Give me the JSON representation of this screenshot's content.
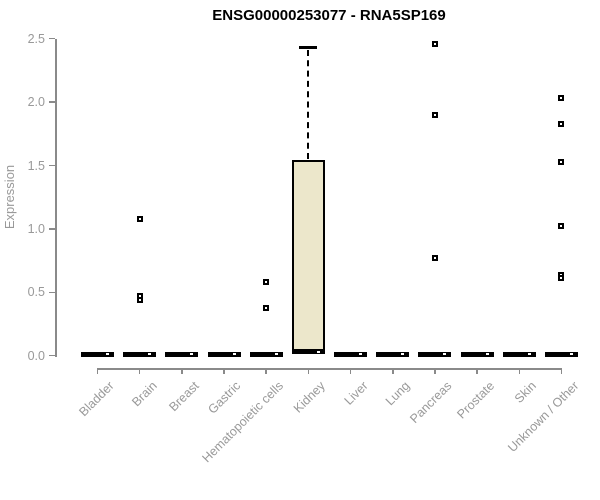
{
  "chart_data": {
    "type": "boxplot",
    "title": "ENSG00000253077 - RNA5SP169",
    "ylabel": "Expression",
    "xlabel": "",
    "ylim": [
      0,
      2.5
    ],
    "ytick_values": [
      0,
      0.5,
      1.0,
      1.5,
      2.0,
      2.5
    ],
    "ytick_labels": [
      "0.0",
      "0.5",
      "1.0",
      "1.5",
      "2.0",
      "2.5"
    ],
    "grid": false,
    "legend": "none",
    "categories": [
      "Bladder",
      "Brain",
      "Breast",
      "Gastric",
      "Hematopoietic cells",
      "Kidney",
      "Liver",
      "Lung",
      "Pancreas",
      "Prostate",
      "Skin",
      "Unknown / Other"
    ],
    "boxes": [
      {
        "category": "Bladder",
        "median": 0,
        "q1": 0,
        "q3": 0,
        "whisker_low": 0,
        "whisker_high": 0,
        "outliers": []
      },
      {
        "category": "Brain",
        "median": 0,
        "q1": 0,
        "q3": 0,
        "whisker_low": 0,
        "whisker_high": 0,
        "outliers": [
          1.08,
          0.47,
          0.44
        ]
      },
      {
        "category": "Breast",
        "median": 0,
        "q1": 0,
        "q3": 0,
        "whisker_low": 0,
        "whisker_high": 0,
        "outliers": []
      },
      {
        "category": "Gastric",
        "median": 0,
        "q1": 0,
        "q3": 0,
        "whisker_low": 0,
        "whisker_high": 0,
        "outliers": []
      },
      {
        "category": "Hematopoietic cells",
        "median": 0,
        "q1": 0,
        "q3": 0,
        "whisker_low": 0,
        "whisker_high": 0,
        "outliers": [
          0.58,
          0.38
        ]
      },
      {
        "category": "Kidney",
        "median": 0.02,
        "q1": 0.02,
        "q3": 1.54,
        "whisker_low": 0,
        "whisker_high": 2.43,
        "outliers": []
      },
      {
        "category": "Liver",
        "median": 0,
        "q1": 0,
        "q3": 0,
        "whisker_low": 0,
        "whisker_high": 0,
        "outliers": []
      },
      {
        "category": "Lung",
        "median": 0,
        "q1": 0,
        "q3": 0,
        "whisker_low": 0,
        "whisker_high": 0,
        "outliers": []
      },
      {
        "category": "Pancreas",
        "median": 0,
        "q1": 0,
        "q3": 0,
        "whisker_low": 0,
        "whisker_high": 0,
        "outliers": [
          2.46,
          1.9,
          0.77
        ]
      },
      {
        "category": "Prostate",
        "median": 0,
        "q1": 0,
        "q3": 0,
        "whisker_low": 0,
        "whisker_high": 0,
        "outliers": []
      },
      {
        "category": "Skin",
        "median": 0,
        "q1": 0,
        "q3": 0,
        "whisker_low": 0,
        "whisker_high": 0,
        "outliers": []
      },
      {
        "category": "Unknown / Other",
        "median": 0,
        "q1": 0,
        "q3": 0,
        "whisker_low": 0,
        "whisker_high": 0,
        "outliers": [
          2.03,
          1.83,
          1.53,
          1.02,
          0.64,
          0.61
        ]
      }
    ],
    "colors": {
      "box_fill": "#ECE7CB",
      "box_border": "#000000",
      "zero_bar": "#000000",
      "axis": "#8A8A8A",
      "tick_label": "#999999",
      "title": "#000000",
      "background": "#FFFFFF"
    },
    "style": {
      "whisker_line": "dashed",
      "outlier_marker": "open-square",
      "x_label_rotation_deg": -45
    }
  }
}
